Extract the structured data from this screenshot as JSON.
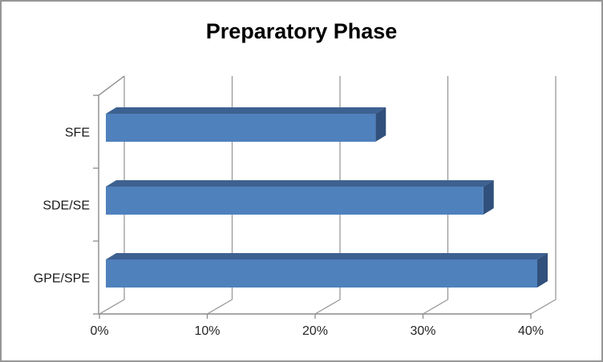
{
  "chart_data": {
    "type": "bar",
    "orientation": "horizontal",
    "style": "3d",
    "title": "Preparatory Phase",
    "categories": [
      "SFE",
      "SDE/SE",
      "GPE/SPE"
    ],
    "values": [
      25,
      35,
      40
    ],
    "value_unit": "%",
    "series": [
      {
        "name": "Preparatory Phase",
        "values": [
          25,
          35,
          40
        ]
      }
    ],
    "x_ticks": [
      "0%",
      "10%",
      "20%",
      "30%",
      "40%"
    ],
    "x_tick_values": [
      0,
      10,
      20,
      30,
      40
    ],
    "xlim": [
      0,
      40
    ],
    "xlabel": "",
    "ylabel": "",
    "grid": true,
    "legend": false,
    "colors": {
      "bar_front": "#4f81bd",
      "bar_top": "#3d6191",
      "bar_end": "#31507b",
      "gridline": "#999999",
      "axis_line": "#8c8c8c",
      "tick_label": "#262626",
      "category_label": "#1a1a1a",
      "title_text": "#000000",
      "frame_border": "#969696",
      "background": "#ffffff"
    }
  }
}
